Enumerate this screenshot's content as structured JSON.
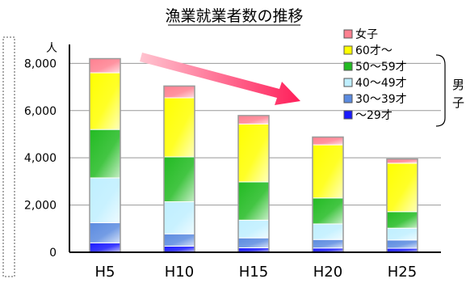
{
  "chart_data": {
    "type": "bar",
    "stacked": true,
    "title": "漁業就業者数の推移",
    "y_unit": "人",
    "categories": [
      "H5",
      "H10",
      "H15",
      "H20",
      "H25"
    ],
    "ylim": [
      0,
      8800
    ],
    "yticks": [
      "0",
      "2,000",
      "4,000",
      "6,000",
      "8,000"
    ],
    "ytick_values": [
      0,
      2000,
      4000,
      6000,
      8000
    ],
    "grid": true,
    "legend_position": "top-right",
    "group_label": "男子",
    "series": [
      {
        "name": "～29才",
        "color": "#1a1aff",
        "values": [
          400,
          260,
          190,
          180,
          170
        ]
      },
      {
        "name": "30～39才",
        "color": "#5b8be0",
        "values": [
          850,
          520,
          420,
          360,
          350
        ]
      },
      {
        "name": "40～49才",
        "color": "#bfefff",
        "values": [
          1900,
          1360,
          750,
          660,
          500
        ]
      },
      {
        "name": "50～59才",
        "color": "#22bb22",
        "values": [
          2050,
          1900,
          1620,
          1100,
          700
        ]
      },
      {
        "name": "60才～",
        "color": "#ffff00",
        "values": [
          2400,
          2500,
          2450,
          2250,
          2050
        ]
      },
      {
        "name": "女子",
        "color": "#ff8090",
        "values": [
          600,
          500,
          360,
          330,
          180
        ]
      }
    ]
  }
}
